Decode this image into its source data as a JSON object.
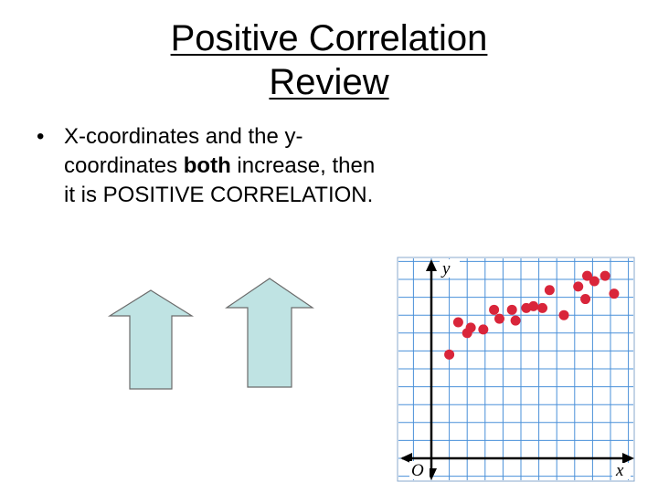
{
  "slide": {
    "title_line1": "Positive Correlation",
    "title_line2": "Review",
    "bullet_symbol": "•",
    "bullet_before": "X-coordinates and the y-coordinates ",
    "bullet_bold": "both",
    "bullet_after": " increase, then it is POSITIVE CORRELATION."
  },
  "colors": {
    "arrow_fill": "#bfe3e3",
    "arrow_stroke": "#6b6b6b",
    "grid": "#4a90d9",
    "axis": "#000000",
    "point": "#d9253a"
  },
  "graph": {
    "y_label": "y",
    "x_label": "x",
    "origin_label": "O"
  },
  "chart_data": {
    "type": "scatter",
    "title": "",
    "xlabel": "x",
    "ylabel": "y",
    "xlim": [
      0,
      11
    ],
    "ylim": [
      0,
      11
    ],
    "grid": true,
    "x": [
      1.0,
      1.5,
      2.0,
      2.2,
      2.9,
      3.5,
      3.8,
      4.5,
      4.7,
      5.3,
      5.7,
      6.2,
      6.6,
      7.4,
      8.2,
      8.6,
      8.7,
      9.1,
      9.7,
      10.2
    ],
    "y": [
      5.8,
      7.6,
      7.0,
      7.3,
      7.2,
      8.3,
      7.8,
      8.3,
      7.7,
      8.4,
      8.5,
      8.4,
      9.4,
      8.0,
      9.6,
      8.9,
      10.2,
      9.9,
      10.2,
      9.2
    ]
  }
}
